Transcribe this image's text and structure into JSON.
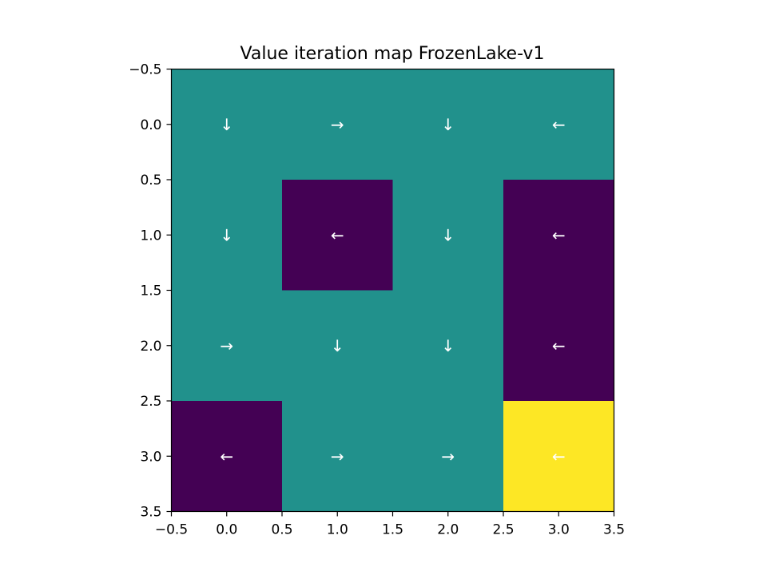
{
  "chart_data": {
    "type": "heatmap",
    "title": "Value iteration map FrozenLake-v1",
    "xlabel": "",
    "ylabel": "",
    "xlim": [
      -0.5,
      3.5
    ],
    "ylim": [
      3.5,
      -0.5
    ],
    "x_ticks": [
      "−0.5",
      "0.0",
      "0.5",
      "1.0",
      "1.5",
      "2.0",
      "2.5",
      "3.0",
      "3.5"
    ],
    "y_ticks": [
      "−0.5",
      "0.0",
      "0.5",
      "1.0",
      "1.5",
      "2.0",
      "2.5",
      "3.0",
      "3.5"
    ],
    "x_tick_values": [
      -0.5,
      0.0,
      0.5,
      1.0,
      1.5,
      2.0,
      2.5,
      3.0,
      3.5
    ],
    "y_tick_values": [
      -0.5,
      0.0,
      0.5,
      1.0,
      1.5,
      2.0,
      2.5,
      3.0,
      3.5
    ],
    "colormap": "viridis",
    "cell_values": [
      [
        0.5,
        0.5,
        0.5,
        0.5
      ],
      [
        0.5,
        0.0,
        0.5,
        0.0
      ],
      [
        0.5,
        0.5,
        0.5,
        0.0
      ],
      [
        0.0,
        0.5,
        0.5,
        1.0
      ]
    ],
    "arrows": [
      [
        "↓",
        "→",
        "↓",
        "←"
      ],
      [
        "↓",
        "←",
        "↓",
        "←"
      ],
      [
        "→",
        "↓",
        "↓",
        "←"
      ],
      [
        "←",
        "→",
        "→",
        "←"
      ]
    ],
    "colors": {
      "low": "#440154",
      "mid": "#21918c",
      "high": "#fde725"
    }
  }
}
